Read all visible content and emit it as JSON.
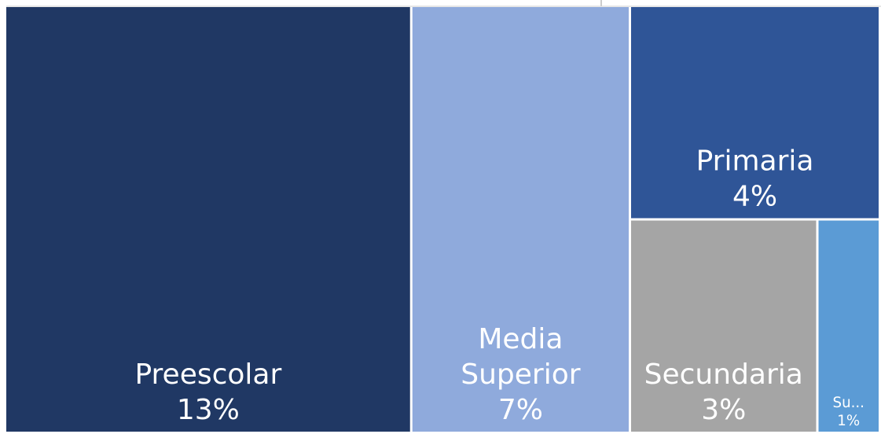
{
  "chart_data": {
    "type": "treemap",
    "categories": [
      "Preescolar",
      "Media Superior",
      "Primaria",
      "Secundaria",
      "Su..."
    ],
    "values": [
      13,
      7,
      4,
      3,
      1
    ],
    "value_labels": [
      "13%",
      "7%",
      "4%",
      "3%",
      "1%"
    ],
    "colors": [
      "#203864",
      "#8faadc",
      "#2f5597",
      "#a5a5a5",
      "#5b9bd5"
    ]
  }
}
